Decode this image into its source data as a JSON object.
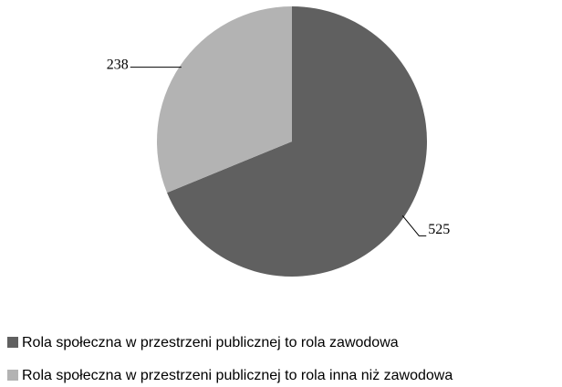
{
  "chart_data": {
    "type": "pie",
    "categories": [
      "Rola społeczna w przestrzeni publicznej to rola zawodowa",
      "Rola społeczna w przestrzeni publicznej to rola inna niż zawodowa"
    ],
    "values": [
      525,
      238
    ],
    "colors": [
      "#606060",
      "#b3b3b3"
    ],
    "legend": "bottom"
  }
}
